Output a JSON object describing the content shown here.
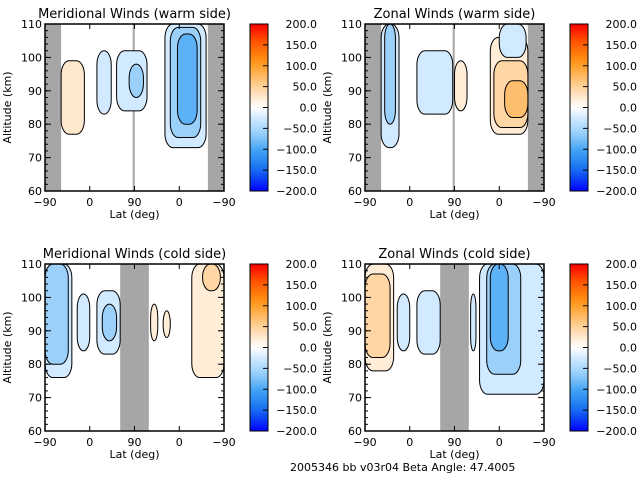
{
  "footer": "2005346 bb v03r04   Beta Angle: 47.4005",
  "colorbar": {
    "ticks": [
      "200.0",
      "150.0",
      "100.0",
      "50.0",
      "0.0",
      "-50.0",
      "-100.0",
      "-150.0",
      "-200.0"
    ],
    "range": [
      -200,
      200
    ]
  },
  "chart_data": [
    {
      "type": "heatmap",
      "title": "Meridional Winds (warm side)",
      "xlabel": "Lat (deg)",
      "ylabel": "Altitude (km)",
      "xticks": [
        "-90",
        "0",
        "90",
        "0",
        "-90"
      ],
      "yticks": [
        "60",
        "70",
        "80",
        "90",
        "100",
        "110"
      ],
      "ylim": [
        60,
        110
      ],
      "xlim_desc": "-90 -> 90 (ascending) then 90 -> -90 (descending)",
      "gray_regions": [
        [
          0,
          0.09
        ],
        [
          0.49,
          0.5
        ],
        [
          0.91,
          1.0
        ]
      ],
      "regions": [
        {
          "x": [
            0.09,
            0.22
          ],
          "y": [
            77,
            99
          ],
          "value": 25
        },
        {
          "x": [
            0.29,
            0.37
          ],
          "y": [
            83,
            102
          ],
          "value": -25
        },
        {
          "x": [
            0.4,
            0.57
          ],
          "y": [
            84,
            102
          ],
          "value": -25
        },
        {
          "x": [
            0.47,
            0.55
          ],
          "y": [
            88,
            98
          ],
          "value": -60
        },
        {
          "x": [
            0.67,
            0.9
          ],
          "y": [
            73,
            110
          ],
          "value": -25
        },
        {
          "x": [
            0.7,
            0.87
          ],
          "y": [
            76,
            109
          ],
          "value": -60
        },
        {
          "x": [
            0.74,
            0.85
          ],
          "y": [
            80,
            107
          ],
          "value": -90
        }
      ],
      "colorbar_range": [
        -200,
        200
      ]
    },
    {
      "type": "heatmap",
      "title": "Zonal Winds (warm side)",
      "xlabel": "Lat (deg)",
      "ylabel": "Altitude (km)",
      "xticks": [
        "-90",
        "0",
        "90",
        "0",
        "-90"
      ],
      "yticks": [
        "60",
        "70",
        "80",
        "90",
        "100",
        "110"
      ],
      "ylim": [
        60,
        110
      ],
      "gray_regions": [
        [
          0,
          0.09
        ],
        [
          0.49,
          0.5
        ],
        [
          0.91,
          1.0
        ]
      ],
      "regions": [
        {
          "x": [
            0.09,
            0.19
          ],
          "y": [
            73,
            110
          ],
          "value": -25
        },
        {
          "x": [
            0.11,
            0.17
          ],
          "y": [
            80,
            110
          ],
          "value": -60
        },
        {
          "x": [
            0.29,
            0.49
          ],
          "y": [
            83,
            102
          ],
          "value": -25
        },
        {
          "x": [
            0.5,
            0.57
          ],
          "y": [
            84,
            99
          ],
          "value": 20
        },
        {
          "x": [
            0.7,
            0.91
          ],
          "y": [
            77,
            106
          ],
          "value": 20
        },
        {
          "x": [
            0.72,
            0.91
          ],
          "y": [
            79,
            99
          ],
          "value": 45
        },
        {
          "x": [
            0.78,
            0.91
          ],
          "y": [
            82,
            93
          ],
          "value": 70
        },
        {
          "x": [
            0.75,
            0.9
          ],
          "y": [
            100,
            110
          ],
          "value": -25
        }
      ],
      "colorbar_range": [
        -200,
        200
      ]
    },
    {
      "type": "heatmap",
      "title": "Meridional Winds (cold side)",
      "xlabel": "Lat (deg)",
      "ylabel": "Altitude (km)",
      "xticks": [
        "-90",
        "0",
        "90",
        "0",
        "-90"
      ],
      "yticks": [
        "60",
        "70",
        "80",
        "90",
        "100",
        "110"
      ],
      "ylim": [
        60,
        110
      ],
      "gray_regions": [
        [
          0.42,
          0.58
        ]
      ],
      "regions": [
        {
          "x": [
            0.0,
            0.15
          ],
          "y": [
            76,
            110
          ],
          "value": -25
        },
        {
          "x": [
            0.0,
            0.13
          ],
          "y": [
            80,
            110
          ],
          "value": -60
        },
        {
          "x": [
            0.18,
            0.25
          ],
          "y": [
            84,
            101
          ],
          "value": -25
        },
        {
          "x": [
            0.29,
            0.42
          ],
          "y": [
            83,
            102
          ],
          "value": -25
        },
        {
          "x": [
            0.32,
            0.4
          ],
          "y": [
            87,
            98
          ],
          "value": -60
        },
        {
          "x": [
            0.59,
            0.63
          ],
          "y": [
            87,
            98
          ],
          "value": 20
        },
        {
          "x": [
            0.66,
            0.7
          ],
          "y": [
            88,
            96
          ],
          "value": 20
        },
        {
          "x": [
            0.82,
            1.0
          ],
          "y": [
            76,
            110
          ],
          "value": 20
        },
        {
          "x": [
            0.88,
            0.98
          ],
          "y": [
            102,
            110
          ],
          "value": 45
        }
      ],
      "colorbar_range": [
        -200,
        200
      ]
    },
    {
      "type": "heatmap",
      "title": "Zonal Winds (cold side)",
      "xlabel": "Lat (deg)",
      "ylabel": "Altitude (km)",
      "xticks": [
        "-90",
        "0",
        "90",
        "0",
        "-90"
      ],
      "yticks": [
        "60",
        "70",
        "80",
        "90",
        "100",
        "110"
      ],
      "ylim": [
        60,
        110
      ],
      "gray_regions": [
        [
          0.42,
          0.58
        ]
      ],
      "regions": [
        {
          "x": [
            0.0,
            0.16
          ],
          "y": [
            78,
            110
          ],
          "value": 20
        },
        {
          "x": [
            0.0,
            0.14
          ],
          "y": [
            82,
            107
          ],
          "value": 45
        },
        {
          "x": [
            0.18,
            0.25
          ],
          "y": [
            84,
            101
          ],
          "value": -25
        },
        {
          "x": [
            0.29,
            0.42
          ],
          "y": [
            83,
            102
          ],
          "value": -25
        },
        {
          "x": [
            0.59,
            0.62
          ],
          "y": [
            84,
            101
          ],
          "value": -25
        },
        {
          "x": [
            0.64,
            1.0
          ],
          "y": [
            71,
            110
          ],
          "value": -25
        },
        {
          "x": [
            0.68,
            0.87
          ],
          "y": [
            77,
            110
          ],
          "value": -60
        },
        {
          "x": [
            0.7,
            0.8
          ],
          "y": [
            84,
            110
          ],
          "value": -90
        }
      ],
      "colorbar_range": [
        -200,
        200
      ]
    }
  ]
}
